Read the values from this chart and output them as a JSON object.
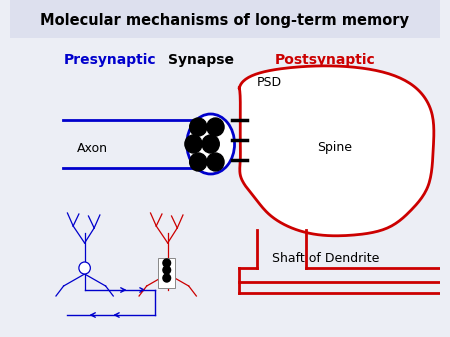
{
  "title": "Molecular mechanisms of long-term memory",
  "bg_color": "#eceef5",
  "title_bg": "#dde0ee",
  "pre_color": "#0000cc",
  "post_color": "#cc0000",
  "syn_color": "#000000",
  "vesicle_color": "#000000",
  "label_pre": "Presynaptic",
  "label_syn": "Synapse",
  "label_post": "Postsynaptic",
  "label_axon": "Axon",
  "label_psd": "PSD",
  "label_spine": "Spine",
  "label_dendrite": "Shaft of Dendrite"
}
